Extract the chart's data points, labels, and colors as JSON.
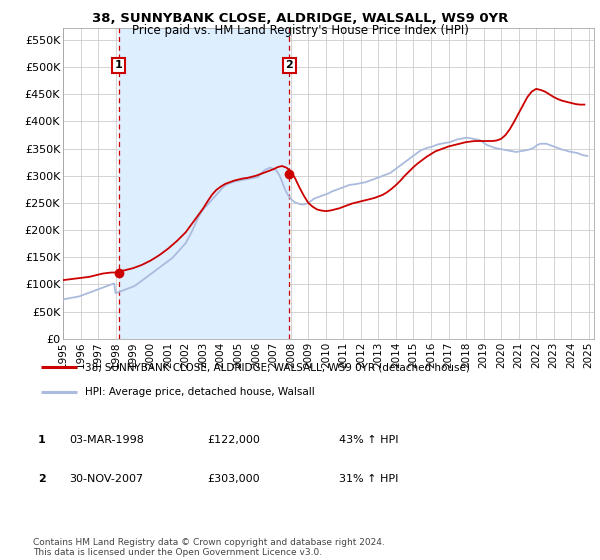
{
  "title": "38, SUNNYBANK CLOSE, ALDRIDGE, WALSALL, WS9 0YR",
  "subtitle": "Price paid vs. HM Land Registry's House Price Index (HPI)",
  "xlim_start": 1995.0,
  "xlim_end": 2025.3,
  "ylim_bottom": 0,
  "ylim_top": 572000,
  "yticks": [
    0,
    50000,
    100000,
    150000,
    200000,
    250000,
    300000,
    350000,
    400000,
    450000,
    500000,
    550000
  ],
  "ytick_labels": [
    "£0",
    "£50K",
    "£100K",
    "£150K",
    "£200K",
    "£250K",
    "£300K",
    "£350K",
    "£400K",
    "£450K",
    "£500K",
    "£550K"
  ],
  "xticks": [
    1995,
    1996,
    1997,
    1998,
    1999,
    2000,
    2001,
    2002,
    2003,
    2004,
    2005,
    2006,
    2007,
    2008,
    2009,
    2010,
    2011,
    2012,
    2013,
    2014,
    2015,
    2016,
    2017,
    2018,
    2019,
    2020,
    2021,
    2022,
    2023,
    2024,
    2025
  ],
  "grid_color": "#cccccc",
  "hpi_color": "#aabbdd",
  "price_color": "#cc0000",
  "shade_color": "#ddeeff",
  "purchase1_x": 1998.17,
  "purchase1_y": 122000,
  "purchase1_label": "1",
  "purchase2_x": 2007.92,
  "purchase2_y": 303000,
  "purchase2_label": "2",
  "vline1_x": 1998.17,
  "vline2_x": 2007.92,
  "vline_color": "#cc0000",
  "legend_line1": "38, SUNNYBANK CLOSE, ALDRIDGE, WALSALL, WS9 0YR (detached house)",
  "legend_line2": "HPI: Average price, detached house, Walsall",
  "table_row1": [
    "1",
    "03-MAR-1998",
    "£122,000",
    "43% ↑ HPI"
  ],
  "table_row2": [
    "2",
    "30-NOV-2007",
    "£303,000",
    "31% ↑ HPI"
  ],
  "footer": "Contains HM Land Registry data © Crown copyright and database right 2024.\nThis data is licensed under the Open Government Licence v3.0.",
  "hpi_x": [
    1995.0,
    1995.083,
    1995.167,
    1995.25,
    1995.333,
    1995.417,
    1995.5,
    1995.583,
    1995.667,
    1995.75,
    1995.833,
    1995.917,
    1996.0,
    1996.083,
    1996.167,
    1996.25,
    1996.333,
    1996.417,
    1996.5,
    1996.583,
    1996.667,
    1996.75,
    1996.833,
    1996.917,
    1997.0,
    1997.083,
    1997.167,
    1997.25,
    1997.333,
    1997.417,
    1997.5,
    1997.583,
    1997.667,
    1997.75,
    1997.833,
    1997.917,
    1998.0,
    1998.083,
    1998.167,
    1998.25,
    1998.333,
    1998.417,
    1998.5,
    1998.583,
    1998.667,
    1998.75,
    1998.833,
    1998.917,
    1999.0,
    1999.083,
    1999.167,
    1999.25,
    1999.333,
    1999.417,
    1999.5,
    1999.583,
    1999.667,
    1999.75,
    1999.833,
    1999.917,
    2000.0,
    2000.083,
    2000.167,
    2000.25,
    2000.333,
    2000.417,
    2000.5,
    2000.583,
    2000.667,
    2000.75,
    2000.833,
    2000.917,
    2001.0,
    2001.083,
    2001.167,
    2001.25,
    2001.333,
    2001.417,
    2001.5,
    2001.583,
    2001.667,
    2001.75,
    2001.833,
    2001.917,
    2002.0,
    2002.083,
    2002.167,
    2002.25,
    2002.333,
    2002.417,
    2002.5,
    2002.583,
    2002.667,
    2002.75,
    2002.833,
    2002.917,
    2003.0,
    2003.083,
    2003.167,
    2003.25,
    2003.333,
    2003.417,
    2003.5,
    2003.583,
    2003.667,
    2003.75,
    2003.833,
    2003.917,
    2004.0,
    2004.083,
    2004.167,
    2004.25,
    2004.333,
    2004.417,
    2004.5,
    2004.583,
    2004.667,
    2004.75,
    2004.833,
    2004.917,
    2005.0,
    2005.083,
    2005.167,
    2005.25,
    2005.333,
    2005.417,
    2005.5,
    2005.583,
    2005.667,
    2005.75,
    2005.833,
    2005.917,
    2006.0,
    2006.083,
    2006.167,
    2006.25,
    2006.333,
    2006.417,
    2006.5,
    2006.583,
    2006.667,
    2006.75,
    2006.833,
    2006.917,
    2007.0,
    2007.083,
    2007.167,
    2007.25,
    2007.333,
    2007.417,
    2007.5,
    2007.583,
    2007.667,
    2007.75,
    2007.833,
    2007.917,
    2008.0,
    2008.083,
    2008.167,
    2008.25,
    2008.333,
    2008.417,
    2008.5,
    2008.583,
    2008.667,
    2008.75,
    2008.833,
    2008.917,
    2009.0,
    2009.083,
    2009.167,
    2009.25,
    2009.333,
    2009.417,
    2009.5,
    2009.583,
    2009.667,
    2009.75,
    2009.833,
    2009.917,
    2010.0,
    2010.083,
    2010.167,
    2010.25,
    2010.333,
    2010.417,
    2010.5,
    2010.583,
    2010.667,
    2010.75,
    2010.833,
    2010.917,
    2011.0,
    2011.083,
    2011.167,
    2011.25,
    2011.333,
    2011.417,
    2011.5,
    2011.583,
    2011.667,
    2011.75,
    2011.833,
    2011.917,
    2012.0,
    2012.083,
    2012.167,
    2012.25,
    2012.333,
    2012.417,
    2012.5,
    2012.583,
    2012.667,
    2012.75,
    2012.833,
    2012.917,
    2013.0,
    2013.083,
    2013.167,
    2013.25,
    2013.333,
    2013.417,
    2013.5,
    2013.583,
    2013.667,
    2013.75,
    2013.833,
    2013.917,
    2014.0,
    2014.083,
    2014.167,
    2014.25,
    2014.333,
    2014.417,
    2014.5,
    2014.583,
    2014.667,
    2014.75,
    2014.833,
    2014.917,
    2015.0,
    2015.083,
    2015.167,
    2015.25,
    2015.333,
    2015.417,
    2015.5,
    2015.583,
    2015.667,
    2015.75,
    2015.833,
    2015.917,
    2016.0,
    2016.083,
    2016.167,
    2016.25,
    2016.333,
    2016.417,
    2016.5,
    2016.583,
    2016.667,
    2016.75,
    2016.833,
    2016.917,
    2017.0,
    2017.083,
    2017.167,
    2017.25,
    2017.333,
    2017.417,
    2017.5,
    2017.583,
    2017.667,
    2017.75,
    2017.833,
    2017.917,
    2018.0,
    2018.083,
    2018.167,
    2018.25,
    2018.333,
    2018.417,
    2018.5,
    2018.583,
    2018.667,
    2018.75,
    2018.833,
    2018.917,
    2019.0,
    2019.083,
    2019.167,
    2019.25,
    2019.333,
    2019.417,
    2019.5,
    2019.583,
    2019.667,
    2019.75,
    2019.833,
    2019.917,
    2020.0,
    2020.083,
    2020.167,
    2020.25,
    2020.333,
    2020.417,
    2020.5,
    2020.583,
    2020.667,
    2020.75,
    2020.833,
    2020.917,
    2021.0,
    2021.083,
    2021.167,
    2021.25,
    2021.333,
    2021.417,
    2021.5,
    2021.583,
    2021.667,
    2021.75,
    2021.833,
    2021.917,
    2022.0,
    2022.083,
    2022.167,
    2022.25,
    2022.333,
    2022.417,
    2022.5,
    2022.583,
    2022.667,
    2022.75,
    2022.833,
    2022.917,
    2023.0,
    2023.083,
    2023.167,
    2023.25,
    2023.333,
    2023.417,
    2023.5,
    2023.583,
    2023.667,
    2023.75,
    2023.833,
    2023.917,
    2024.0,
    2024.083,
    2024.167,
    2024.25,
    2024.333,
    2024.417,
    2024.5,
    2024.583,
    2024.667,
    2024.75,
    2024.833,
    2024.917
  ],
  "hpi_y": [
    72000,
    73000,
    73500,
    74000,
    74500,
    75000,
    75500,
    76000,
    76500,
    77000,
    77500,
    78000,
    79000,
    80000,
    81000,
    82000,
    83000,
    84000,
    85000,
    86000,
    87000,
    88000,
    89000,
    90000,
    91000,
    92000,
    93000,
    94000,
    95000,
    96000,
    97000,
    98000,
    99000,
    100000,
    101000,
    102000,
    84000,
    85000,
    86000,
    87000,
    88000,
    89000,
    90000,
    91000,
    92000,
    93000,
    94000,
    95000,
    96000,
    97500,
    99000,
    101000,
    103000,
    105000,
    107000,
    109000,
    111000,
    113000,
    115000,
    117000,
    119000,
    121000,
    123000,
    125000,
    127000,
    129000,
    131000,
    133000,
    135000,
    137000,
    139000,
    141000,
    143000,
    145000,
    147000,
    149000,
    152000,
    155000,
    158000,
    161000,
    164000,
    167000,
    170000,
    173000,
    176000,
    181000,
    186000,
    191000,
    196000,
    202000,
    208000,
    214000,
    220000,
    225000,
    230000,
    234000,
    238000,
    242000,
    244000,
    247000,
    250000,
    253000,
    256000,
    259000,
    262000,
    265000,
    268000,
    271000,
    274000,
    277000,
    280000,
    282000,
    284000,
    285000,
    286000,
    287000,
    288000,
    289000,
    290000,
    290500,
    291000,
    291500,
    292000,
    292500,
    293000,
    293500,
    294000,
    294500,
    295000,
    295500,
    296000,
    296500,
    297000,
    297500,
    299000,
    302000,
    305000,
    308000,
    310000,
    312000,
    313000,
    314000,
    315000,
    314000,
    313000,
    312000,
    310000,
    306000,
    302000,
    296000,
    289000,
    282000,
    275000,
    270000,
    265000,
    261000,
    258000,
    255000,
    253000,
    251000,
    250000,
    249000,
    248000,
    247500,
    247000,
    247500,
    248000,
    249000,
    250000,
    252000,
    254000,
    256000,
    258000,
    259000,
    260000,
    261000,
    262000,
    263000,
    264000,
    265000,
    266000,
    267000,
    268000,
    269500,
    271000,
    272000,
    273000,
    274000,
    275000,
    276000,
    277000,
    278000,
    279000,
    280000,
    281000,
    282000,
    283000,
    283500,
    284000,
    284000,
    284500,
    285000,
    285500,
    286000,
    286500,
    287000,
    287500,
    288000,
    289000,
    290000,
    291000,
    292000,
    293000,
    294000,
    295000,
    296000,
    297000,
    298000,
    299000,
    300000,
    301000,
    302000,
    303000,
    304000,
    305000,
    307000,
    309000,
    311000,
    313000,
    315000,
    317000,
    319000,
    321000,
    323000,
    325000,
    327000,
    329000,
    331000,
    333000,
    335000,
    337000,
    339000,
    341000,
    343000,
    345000,
    347000,
    348000,
    349000,
    350000,
    351000,
    352000,
    352500,
    353000,
    354000,
    355000,
    356000,
    357000,
    358000,
    358500,
    359000,
    359500,
    360000,
    360500,
    361000,
    361500,
    362000,
    363000,
    364000,
    365000,
    366000,
    367000,
    367500,
    368000,
    368500,
    369000,
    369500,
    370000,
    370000,
    369500,
    369000,
    368500,
    368000,
    367500,
    367000,
    366500,
    366000,
    365000,
    363000,
    361000,
    359000,
    357000,
    356000,
    355000,
    354000,
    353000,
    352000,
    351000,
    350500,
    350000,
    349500,
    349000,
    348500,
    348000,
    347500,
    347000,
    346500,
    346000,
    345500,
    345000,
    344500,
    344000,
    344000,
    344500,
    345000,
    345500,
    346000,
    346500,
    347000,
    347500,
    348000,
    349000,
    350000,
    351000,
    353000,
    355000,
    357000,
    358000,
    359000,
    359000,
    359000,
    359000,
    359000,
    358000,
    357000,
    356000,
    355000,
    354000,
    353000,
    352000,
    351000,
    350000,
    349000,
    348000,
    347500,
    347000,
    346000,
    345000,
    344500,
    344000,
    343500,
    343000,
    342500,
    342000,
    341000,
    340000,
    339000,
    338000,
    337500,
    337000,
    336500
  ],
  "price_x": [
    1995.0,
    1995.25,
    1995.5,
    1995.75,
    1996.0,
    1996.25,
    1996.5,
    1996.75,
    1997.0,
    1997.25,
    1997.5,
    1997.75,
    1998.0,
    1998.25,
    1998.5,
    1998.75,
    1999.0,
    1999.25,
    1999.5,
    1999.75,
    2000.0,
    2000.25,
    2000.5,
    2000.75,
    2001.0,
    2001.25,
    2001.5,
    2001.75,
    2002.0,
    2002.25,
    2002.5,
    2002.75,
    2003.0,
    2003.25,
    2003.5,
    2003.75,
    2004.0,
    2004.25,
    2004.5,
    2004.75,
    2005.0,
    2005.25,
    2005.5,
    2005.75,
    2006.0,
    2006.25,
    2006.5,
    2006.75,
    2007.0,
    2007.25,
    2007.5,
    2007.75,
    2008.0,
    2008.25,
    2008.5,
    2008.75,
    2009.0,
    2009.25,
    2009.5,
    2009.75,
    2010.0,
    2010.25,
    2010.5,
    2010.75,
    2011.0,
    2011.25,
    2011.5,
    2011.75,
    2012.0,
    2012.25,
    2012.5,
    2012.75,
    2013.0,
    2013.25,
    2013.5,
    2013.75,
    2014.0,
    2014.25,
    2014.5,
    2014.75,
    2015.0,
    2015.25,
    2015.5,
    2015.75,
    2016.0,
    2016.25,
    2016.5,
    2016.75,
    2017.0,
    2017.25,
    2017.5,
    2017.75,
    2018.0,
    2018.25,
    2018.5,
    2018.75,
    2019.0,
    2019.25,
    2019.5,
    2019.75,
    2020.0,
    2020.25,
    2020.5,
    2020.75,
    2021.0,
    2021.25,
    2021.5,
    2021.75,
    2022.0,
    2022.25,
    2022.5,
    2022.75,
    2023.0,
    2023.25,
    2023.5,
    2023.75,
    2024.0,
    2024.25,
    2024.5,
    2024.75
  ],
  "price_y": [
    108000,
    109000,
    110000,
    111000,
    112000,
    113000,
    114000,
    116000,
    118000,
    120000,
    121000,
    122000,
    122000,
    124000,
    126000,
    128000,
    130000,
    133000,
    136000,
    140000,
    144000,
    149000,
    154000,
    160000,
    166000,
    173000,
    180000,
    188000,
    196000,
    207000,
    218000,
    229000,
    240000,
    253000,
    265000,
    274000,
    280000,
    285000,
    288000,
    291000,
    293000,
    295000,
    296000,
    298000,
    300000,
    303000,
    306000,
    309000,
    312000,
    316000,
    318000,
    315000,
    308000,
    295000,
    278000,
    263000,
    250000,
    243000,
    238000,
    236000,
    235000,
    236000,
    238000,
    240000,
    243000,
    246000,
    249000,
    251000,
    253000,
    255000,
    257000,
    259000,
    262000,
    265000,
    270000,
    276000,
    283000,
    291000,
    300000,
    308000,
    316000,
    323000,
    329000,
    335000,
    340000,
    345000,
    348000,
    351000,
    354000,
    356000,
    358000,
    360000,
    362000,
    363000,
    364000,
    364000,
    364000,
    364000,
    364000,
    365000,
    368000,
    375000,
    386000,
    400000,
    415000,
    430000,
    445000,
    455000,
    460000,
    458000,
    455000,
    450000,
    445000,
    441000,
    438000,
    436000,
    434000,
    432000,
    431000,
    431000
  ]
}
